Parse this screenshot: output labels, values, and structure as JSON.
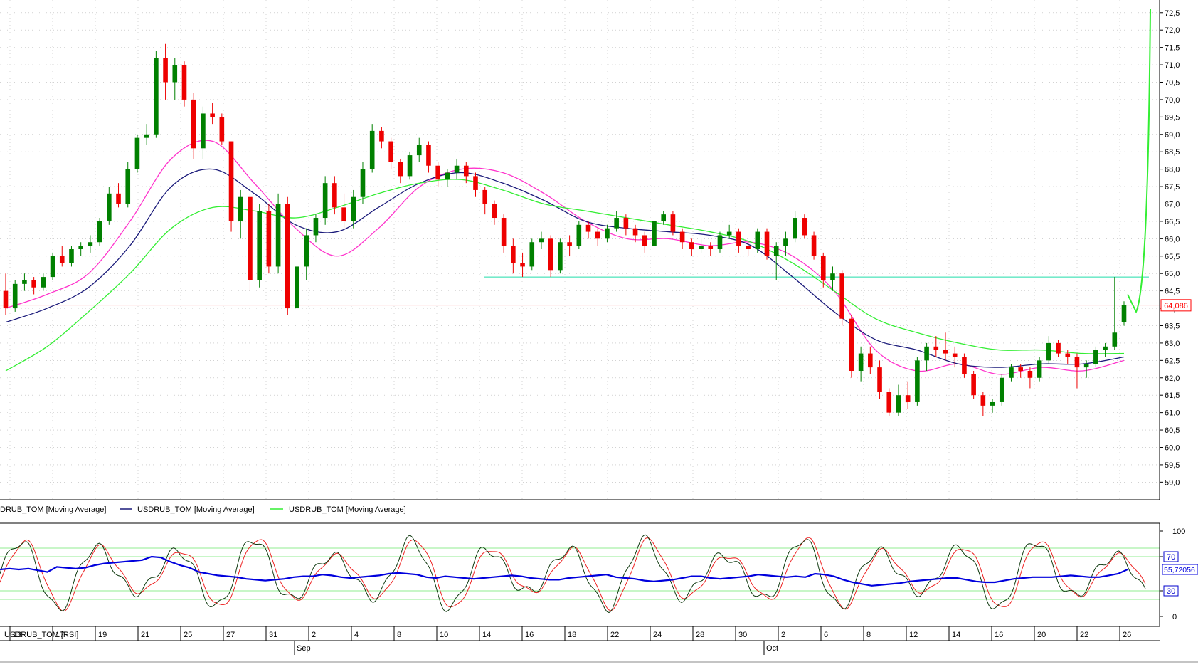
{
  "colors": {
    "up": "#008000",
    "down": "#ee0000",
    "ma_magenta": "#ff33cc",
    "ma_navy": "#1a1a7a",
    "ma_green": "#33ee33",
    "support": "#22ddaa",
    "price_marker": "#ff0000",
    "stoch_k": "#103a10",
    "stoch_d": "#ee2222",
    "rsi": "#0000dd",
    "grid": "#b8b8b8",
    "level_lines": "#90ee90"
  },
  "legend": {
    "ma1": "DRUB_TOM [Moving Average]",
    "ma2": "USDRUB_TOM [Moving Average]",
    "ma3": "USDRUB_TOM [Moving Average]"
  },
  "indicator_label": "USDRUB_TOM [RSI]",
  "price_marker_label": "64,086",
  "rsi_marker_label": "55,72056",
  "chart_data": {
    "type": "candlestick",
    "instrument": "USDRUB_TOM",
    "price_axis": {
      "ylim": [
        58.7,
        72.7
      ],
      "ticks": [
        "72,5",
        "72,0",
        "71,5",
        "71,0",
        "70,5",
        "70,0",
        "69,5",
        "69,0",
        "68,5",
        "68,0",
        "67,5",
        "67,0",
        "66,5",
        "66,0",
        "65,5",
        "65,0",
        "64,5",
        "64,0",
        "63,5",
        "63,0",
        "62,5",
        "62,0",
        "61,5",
        "61,0",
        "60,5",
        "60,0",
        "59,5",
        "59,0"
      ]
    },
    "x_axis": {
      "ticks": [
        "13",
        "17",
        "19",
        "21",
        "25",
        "27",
        "31",
        "2",
        "4",
        "8",
        "10",
        "14",
        "16",
        "18",
        "22",
        "24",
        "28",
        "30",
        "2",
        "6",
        "8",
        "12",
        "14",
        "16",
        "20",
        "22",
        "26"
      ],
      "months": [
        "Sep",
        "Oct"
      ]
    },
    "ohlc": [
      [
        64.5,
        65.0,
        63.8,
        64.0
      ],
      [
        64.0,
        64.8,
        63.9,
        64.7
      ],
      [
        64.7,
        65.0,
        64.5,
        64.8
      ],
      [
        64.8,
        64.9,
        64.4,
        64.6
      ],
      [
        64.6,
        65.0,
        64.5,
        64.9
      ],
      [
        64.9,
        65.6,
        64.8,
        65.5
      ],
      [
        65.5,
        65.8,
        65.2,
        65.3
      ],
      [
        65.3,
        65.8,
        65.2,
        65.7
      ],
      [
        65.7,
        65.9,
        65.5,
        65.8
      ],
      [
        65.8,
        66.1,
        65.6,
        65.9
      ],
      [
        65.9,
        66.6,
        65.8,
        66.5
      ],
      [
        66.5,
        67.5,
        66.4,
        67.3
      ],
      [
        67.3,
        67.6,
        66.9,
        67.0
      ],
      [
        67.0,
        68.2,
        66.9,
        68.0
      ],
      [
        68.0,
        69.0,
        67.9,
        68.9
      ],
      [
        68.9,
        69.3,
        68.7,
        69.0
      ],
      [
        69.0,
        71.4,
        68.9,
        71.2
      ],
      [
        71.2,
        71.6,
        70.0,
        70.5
      ],
      [
        70.5,
        71.2,
        70.0,
        71.0
      ],
      [
        71.0,
        71.1,
        69.8,
        70.0
      ],
      [
        70.0,
        70.2,
        68.3,
        68.6
      ],
      [
        68.6,
        69.8,
        68.3,
        69.6
      ],
      [
        69.6,
        69.9,
        69.3,
        69.5
      ],
      [
        69.5,
        69.6,
        68.7,
        68.8
      ],
      [
        68.8,
        68.8,
        66.2,
        66.5
      ],
      [
        66.5,
        67.4,
        66.0,
        67.2
      ],
      [
        67.2,
        67.3,
        64.5,
        64.8
      ],
      [
        64.8,
        67.0,
        64.6,
        66.8
      ],
      [
        66.8,
        67.0,
        65.0,
        65.2
      ],
      [
        65.2,
        67.3,
        65.0,
        67.0
      ],
      [
        67.0,
        67.2,
        63.8,
        64.0
      ],
      [
        64.0,
        65.5,
        63.7,
        65.2
      ],
      [
        65.2,
        66.3,
        64.8,
        66.1
      ],
      [
        66.1,
        66.7,
        65.9,
        66.6
      ],
      [
        66.6,
        67.8,
        66.4,
        67.6
      ],
      [
        67.6,
        67.8,
        66.7,
        66.9
      ],
      [
        66.9,
        67.3,
        66.3,
        66.5
      ],
      [
        66.5,
        67.4,
        66.3,
        67.2
      ],
      [
        67.2,
        68.2,
        67.0,
        68.0
      ],
      [
        68.0,
        69.3,
        67.9,
        69.1
      ],
      [
        69.1,
        69.2,
        68.6,
        68.8
      ],
      [
        68.8,
        68.9,
        68.0,
        68.2
      ],
      [
        68.2,
        68.3,
        67.6,
        67.8
      ],
      [
        67.8,
        68.5,
        67.7,
        68.4
      ],
      [
        68.4,
        68.9,
        68.2,
        68.7
      ],
      [
        68.7,
        68.8,
        67.9,
        68.1
      ],
      [
        68.1,
        68.2,
        67.5,
        67.7
      ],
      [
        67.7,
        68.0,
        67.5,
        67.9
      ],
      [
        67.9,
        68.3,
        67.7,
        68.1
      ],
      [
        68.1,
        68.2,
        67.6,
        67.8
      ],
      [
        67.8,
        67.9,
        67.2,
        67.4
      ],
      [
        67.4,
        67.5,
        66.7,
        67.0
      ],
      [
        67.0,
        67.1,
        66.4,
        66.6
      ],
      [
        66.6,
        66.7,
        65.6,
        65.8
      ],
      [
        65.8,
        66.0,
        65.0,
        65.3
      ],
      [
        65.3,
        65.6,
        64.9,
        65.2
      ],
      [
        65.2,
        66.0,
        65.1,
        65.9
      ],
      [
        65.9,
        66.2,
        65.7,
        66.0
      ],
      [
        66.0,
        66.1,
        64.9,
        65.1
      ],
      [
        65.1,
        66.0,
        65.0,
        65.9
      ],
      [
        65.9,
        66.1,
        65.5,
        65.8
      ],
      [
        65.8,
        66.5,
        65.7,
        66.4
      ],
      [
        66.4,
        66.5,
        66.0,
        66.2
      ],
      [
        66.2,
        66.3,
        65.8,
        66.0
      ],
      [
        66.0,
        66.4,
        65.9,
        66.3
      ],
      [
        66.3,
        66.8,
        66.2,
        66.6
      ],
      [
        66.6,
        66.7,
        66.1,
        66.3
      ],
      [
        66.3,
        66.4,
        65.9,
        66.1
      ],
      [
        66.1,
        66.2,
        65.6,
        65.8
      ],
      [
        65.8,
        66.6,
        65.7,
        66.5
      ],
      [
        66.5,
        66.8,
        66.4,
        66.7
      ],
      [
        66.7,
        66.8,
        66.1,
        66.2
      ],
      [
        66.2,
        66.3,
        65.7,
        65.9
      ],
      [
        65.9,
        66.0,
        65.5,
        65.7
      ],
      [
        65.7,
        66.0,
        65.6,
        65.8
      ],
      [
        65.8,
        65.9,
        65.5,
        65.7
      ],
      [
        65.7,
        66.2,
        65.6,
        66.1
      ],
      [
        66.1,
        66.4,
        66.0,
        66.2
      ],
      [
        66.2,
        66.3,
        65.6,
        65.8
      ],
      [
        65.8,
        65.9,
        65.5,
        65.7
      ],
      [
        65.7,
        66.3,
        65.6,
        66.2
      ],
      [
        66.2,
        66.3,
        65.4,
        65.5
      ],
      [
        65.5,
        65.9,
        64.8,
        65.8
      ],
      [
        65.8,
        66.2,
        65.5,
        66.0
      ],
      [
        66.0,
        66.8,
        65.9,
        66.6
      ],
      [
        66.6,
        66.7,
        66.0,
        66.1
      ],
      [
        66.1,
        66.2,
        65.4,
        65.5
      ],
      [
        65.5,
        65.6,
        64.6,
        64.8
      ],
      [
        64.8,
        65.2,
        64.5,
        65.0
      ],
      [
        65.0,
        65.1,
        63.5,
        63.7
      ],
      [
        63.7,
        63.8,
        62.0,
        62.2
      ],
      [
        62.2,
        62.9,
        61.9,
        62.7
      ],
      [
        62.7,
        62.9,
        62.1,
        62.3
      ],
      [
        62.3,
        62.5,
        61.4,
        61.6
      ],
      [
        61.6,
        61.7,
        60.9,
        61.0
      ],
      [
        61.0,
        61.8,
        60.9,
        61.5
      ],
      [
        61.5,
        61.9,
        61.1,
        61.3
      ],
      [
        61.3,
        62.6,
        61.2,
        62.5
      ],
      [
        62.5,
        63.0,
        62.2,
        62.9
      ],
      [
        62.9,
        63.2,
        62.6,
        62.8
      ],
      [
        62.8,
        63.3,
        62.5,
        62.7
      ],
      [
        62.7,
        62.9,
        62.3,
        62.6
      ],
      [
        62.6,
        62.7,
        62.0,
        62.1
      ],
      [
        62.1,
        62.2,
        61.4,
        61.5
      ],
      [
        61.5,
        61.6,
        60.9,
        61.2
      ],
      [
        61.2,
        61.4,
        61.0,
        61.3
      ],
      [
        61.3,
        62.1,
        61.2,
        62.0
      ],
      [
        62.0,
        62.4,
        61.9,
        62.3
      ],
      [
        62.3,
        62.4,
        62.0,
        62.2
      ],
      [
        62.2,
        62.3,
        61.7,
        62.0
      ],
      [
        62.0,
        62.6,
        61.9,
        62.5
      ],
      [
        62.5,
        63.2,
        62.4,
        63.0
      ],
      [
        63.0,
        63.1,
        62.6,
        62.7
      ],
      [
        62.7,
        62.8,
        62.4,
        62.6
      ],
      [
        62.6,
        62.7,
        61.7,
        62.3
      ],
      [
        62.3,
        62.5,
        62.0,
        62.4
      ],
      [
        62.4,
        62.9,
        62.3,
        62.8
      ],
      [
        62.8,
        63.0,
        62.6,
        62.9
      ],
      [
        62.9,
        64.9,
        62.8,
        63.3
      ],
      [
        63.6,
        64.2,
        63.5,
        64.1
      ]
    ],
    "moving_averages": [
      {
        "color_key": "ma_magenta",
        "values": [
          64.0,
          64.4,
          65.0,
          66.5,
          68.3,
          68.8,
          67.6,
          66.3,
          65.5,
          66.3,
          67.5,
          68.0,
          67.9,
          67.3,
          66.5,
          66.0,
          66.0,
          65.8,
          65.9,
          65.5,
          64.5,
          62.8,
          62.2,
          62.4,
          62.1,
          62.3,
          62.2,
          62.5
        ]
      },
      {
        "color_key": "ma_navy",
        "values": [
          63.6,
          64.0,
          64.6,
          65.8,
          67.5,
          68.0,
          67.3,
          66.4,
          66.2,
          66.9,
          67.6,
          67.9,
          67.6,
          67.1,
          66.5,
          66.3,
          66.2,
          66.1,
          65.8,
          64.9,
          63.9,
          63.1,
          62.8,
          62.4,
          62.3,
          62.4,
          62.4,
          62.6
        ]
      },
      {
        "color_key": "ma_green",
        "values": [
          62.2,
          62.9,
          63.9,
          65.0,
          66.3,
          66.9,
          66.8,
          66.6,
          66.9,
          67.3,
          67.6,
          67.7,
          67.4,
          67.0,
          66.8,
          66.6,
          66.4,
          66.2,
          65.9,
          65.3,
          64.5,
          63.7,
          63.3,
          63.0,
          62.8,
          62.8,
          62.7,
          62.7
        ]
      }
    ],
    "support_line": 64.9,
    "last_price": 64.086,
    "indicator": {
      "name": "RSI",
      "ylim": [
        -10,
        105
      ],
      "ticks": [
        "100",
        "70",
        "30",
        "0"
      ],
      "rsi_values": [
        55,
        56,
        55,
        56,
        54,
        52,
        58,
        57,
        56,
        57,
        60,
        62,
        63,
        64,
        65,
        66,
        70,
        69,
        64,
        60,
        57,
        52,
        50,
        48,
        47,
        46,
        44,
        43,
        42,
        43,
        44,
        46,
        47,
        47,
        49,
        48,
        46,
        45,
        46,
        47,
        48,
        50,
        51,
        50,
        49,
        46,
        45,
        47,
        46,
        45,
        44,
        45,
        46,
        47,
        48,
        47,
        45,
        44,
        43,
        43,
        45,
        46,
        47,
        48,
        49,
        46,
        45,
        44,
        42,
        41,
        42,
        43,
        45,
        47,
        47,
        45,
        44,
        45,
        46,
        47,
        49,
        48,
        47,
        46,
        47,
        46,
        50,
        49,
        47,
        43,
        40,
        38,
        36,
        37,
        38,
        39,
        41,
        42,
        43,
        44,
        45,
        45,
        43,
        41,
        40,
        40,
        42,
        44,
        45,
        46,
        46,
        46,
        47,
        48,
        47,
        46,
        46,
        48,
        50,
        55
      ]
    }
  }
}
